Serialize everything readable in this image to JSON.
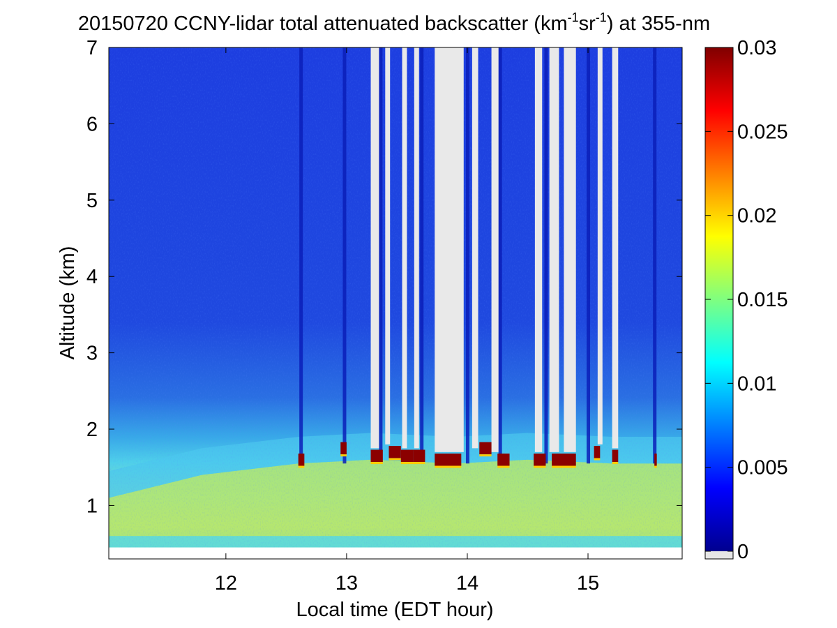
{
  "chart_data": {
    "type": "heatmap",
    "title": {
      "prefix": "20150720 CCNY-lidar total attenuated backscatter (km",
      "sup1": "-1",
      "middle": "sr",
      "sup2": "-1",
      "suffix": ") at 355-nm"
    },
    "xlabel": "Local time (EDT hour)",
    "ylabel": "Altitude (km)",
    "xlim": [
      11.03,
      15.78
    ],
    "ylim": [
      0.3,
      7
    ],
    "data_ylim": [
      0.45,
      7
    ],
    "x_ticks": [
      12,
      13,
      14,
      15
    ],
    "x_tick_labels": [
      "12",
      "13",
      "14",
      "15"
    ],
    "y_ticks": [
      1,
      2,
      3,
      4,
      5,
      6,
      7
    ],
    "y_tick_labels": [
      "1",
      "2",
      "3",
      "4",
      "5",
      "6",
      "7"
    ],
    "colorbar": {
      "range": [
        0,
        0.03
      ],
      "ticks": [
        0,
        0.005,
        0.01,
        0.015,
        0.02,
        0.025,
        0.03
      ],
      "tick_labels": [
        "0",
        "0.005",
        "0.01",
        "0.015",
        "0.02",
        "0.025",
        "0.03"
      ],
      "colormap": "jet",
      "nodata_color": "#e6e6e6"
    },
    "boundary_layer_top_km": [
      {
        "x": 11.03,
        "y": 1.1
      },
      {
        "x": 11.8,
        "y": 1.4
      },
      {
        "x": 12.6,
        "y": 1.55
      },
      {
        "x": 13.2,
        "y": 1.6
      },
      {
        "x": 13.9,
        "y": 1.55
      },
      {
        "x": 14.5,
        "y": 1.6
      },
      {
        "x": 15.2,
        "y": 1.55
      },
      {
        "x": 15.78,
        "y": 1.55
      }
    ],
    "cloud_base_bands": [
      {
        "x_start": 12.6,
        "x_end": 12.65,
        "y": 1.6
      },
      {
        "x_start": 12.95,
        "x_end": 13.0,
        "y": 1.75
      },
      {
        "x_start": 13.2,
        "x_end": 13.3,
        "y": 1.65
      },
      {
        "x_start": 13.35,
        "x_end": 13.45,
        "y": 1.7
      },
      {
        "x_start": 13.45,
        "x_end": 13.55,
        "y": 1.65
      },
      {
        "x_start": 13.55,
        "x_end": 13.65,
        "y": 1.65
      },
      {
        "x_start": 13.73,
        "x_end": 13.95,
        "y": 1.6
      },
      {
        "x_start": 14.1,
        "x_end": 14.2,
        "y": 1.75
      },
      {
        "x_start": 14.25,
        "x_end": 14.35,
        "y": 1.6
      },
      {
        "x_start": 14.55,
        "x_end": 14.65,
        "y": 1.6
      },
      {
        "x_start": 14.7,
        "x_end": 14.9,
        "y": 1.6
      },
      {
        "x_start": 15.05,
        "x_end": 15.1,
        "y": 1.7
      },
      {
        "x_start": 15.2,
        "x_end": 15.25,
        "y": 1.65
      },
      {
        "x_start": 15.55,
        "x_end": 15.57,
        "y": 1.6
      }
    ],
    "attenuated_gaps": [
      {
        "x_start": 13.2,
        "x_end": 13.27
      },
      {
        "x_start": 13.32,
        "x_end": 13.36
      },
      {
        "x_start": 13.46,
        "x_end": 13.5
      },
      {
        "x_start": 13.56,
        "x_end": 13.6
      },
      {
        "x_start": 13.73,
        "x_end": 13.97
      },
      {
        "x_start": 14.04,
        "x_end": 14.09
      },
      {
        "x_start": 14.2,
        "x_end": 14.26
      },
      {
        "x_start": 14.56,
        "x_end": 14.62
      },
      {
        "x_start": 14.68,
        "x_end": 14.76
      },
      {
        "x_start": 14.8,
        "x_end": 14.9
      },
      {
        "x_start": 15.08,
        "x_end": 15.12
      },
      {
        "x_start": 15.2,
        "x_end": 15.25
      }
    ],
    "dark_columns": [
      12.62,
      12.98,
      13.28,
      13.62,
      14.0,
      14.27,
      14.65,
      15.0,
      15.55
    ]
  }
}
